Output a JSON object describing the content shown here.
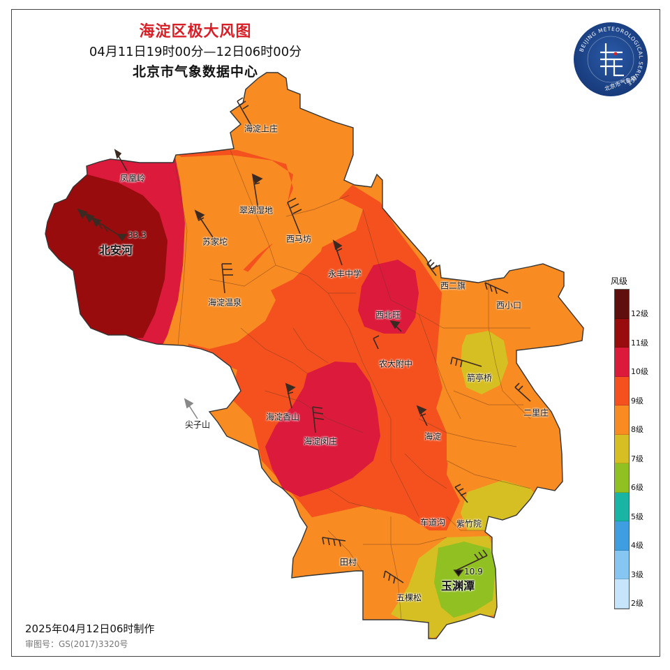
{
  "header": {
    "title": "海淀区极大风图",
    "period": "04月11日19时00分—12日06时00分",
    "issuer": "北京市气象数据中心"
  },
  "footer": {
    "made": "2025年04月12日06时制作",
    "review": "审图号：GS(2017)3320号"
  },
  "logo": {
    "ring_text": "BEIJING METEOROLOGICAL SERVICE",
    "cn_text": "北京市气象局",
    "icon": "beijing-meteorological-service-emblem"
  },
  "legend": {
    "title": "风级",
    "levels": [
      {
        "label": "12级",
        "color": "#5e0f0e"
      },
      {
        "label": "11级",
        "color": "#980c0d"
      },
      {
        "label": "10级",
        "color": "#dc1a3c"
      },
      {
        "label": "9级",
        "color": "#f4511f"
      },
      {
        "label": "8级",
        "color": "#f88b21"
      },
      {
        "label": "7级",
        "color": "#d6bf22"
      },
      {
        "label": "6级",
        "color": "#90c021"
      },
      {
        "label": "5级",
        "color": "#19b4a4"
      },
      {
        "label": "4级",
        "color": "#3e9ee0"
      },
      {
        "label": "3级",
        "color": "#86c6f2"
      },
      {
        "label": "2级",
        "color": "#c6e5fb"
      }
    ]
  },
  "stations": [
    {
      "name": "海淀上庄"
    },
    {
      "name": "凤凰岭"
    },
    {
      "name": "翠湖湿地"
    },
    {
      "name": "北安河"
    },
    {
      "name": "苏家坨"
    },
    {
      "name": "西马坊"
    },
    {
      "name": "永丰中学"
    },
    {
      "name": "海淀温泉"
    },
    {
      "name": "西二旗"
    },
    {
      "name": "西小口"
    },
    {
      "name": "西北旺"
    },
    {
      "name": "农大附中"
    },
    {
      "name": "箭亭桥"
    },
    {
      "name": "二里庄"
    },
    {
      "name": "尖子山"
    },
    {
      "name": "海淀香山"
    },
    {
      "name": "海淀闵庄"
    },
    {
      "name": "海淀"
    },
    {
      "name": "车道沟"
    },
    {
      "name": "紫竹院"
    },
    {
      "name": "田村"
    },
    {
      "name": "玉渊潭"
    },
    {
      "name": "五棵松"
    }
  ],
  "extremes": [
    {
      "station": "北安河",
      "value": "33.3"
    },
    {
      "station": "玉渊潭",
      "value": "10.9"
    }
  ]
}
